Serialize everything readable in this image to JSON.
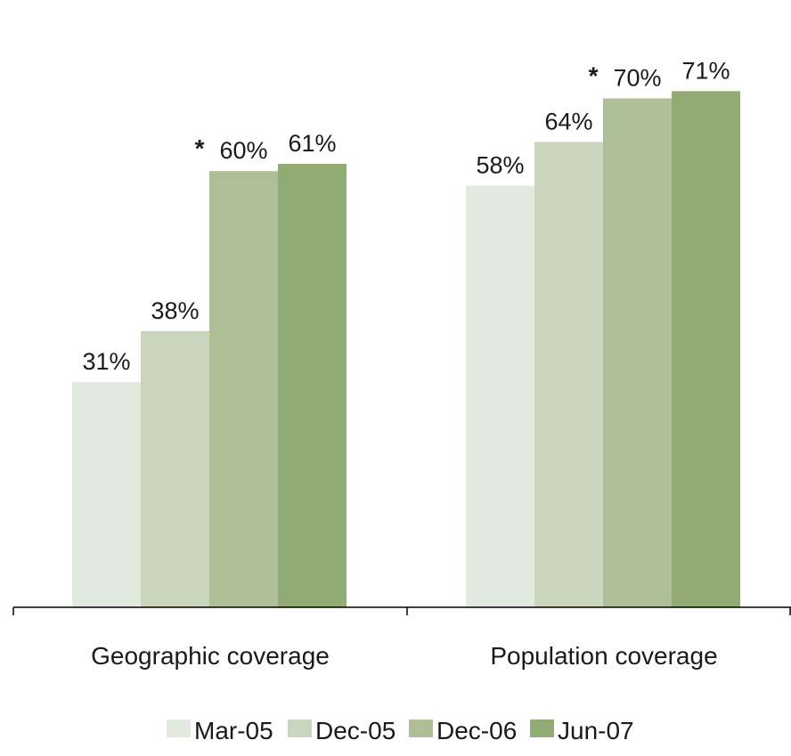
{
  "chart_data": {
    "type": "bar",
    "title": "",
    "xlabel": "",
    "ylabel": "",
    "ylim": [
      0,
      80
    ],
    "grid": false,
    "legend_position": "bottom",
    "categories": [
      "Geographic coverage",
      "Population coverage"
    ],
    "series": [
      {
        "name": "Mar-05",
        "values": [
          31,
          58
        ],
        "labels": [
          "31%",
          "58%"
        ],
        "color": "#e2e9df"
      },
      {
        "name": "Dec-05",
        "values": [
          38,
          64
        ],
        "labels": [
          "38%",
          "64%"
        ],
        "color": "#c9d5bd"
      },
      {
        "name": "Dec-06",
        "values": [
          60,
          70
        ],
        "labels": [
          "60%",
          "70%"
        ],
        "color": "#aebf97",
        "marker": "*"
      },
      {
        "name": "Jun-07",
        "values": [
          61,
          71
        ],
        "labels": [
          "61%",
          "71%"
        ],
        "color": "#93ab74"
      }
    ]
  }
}
